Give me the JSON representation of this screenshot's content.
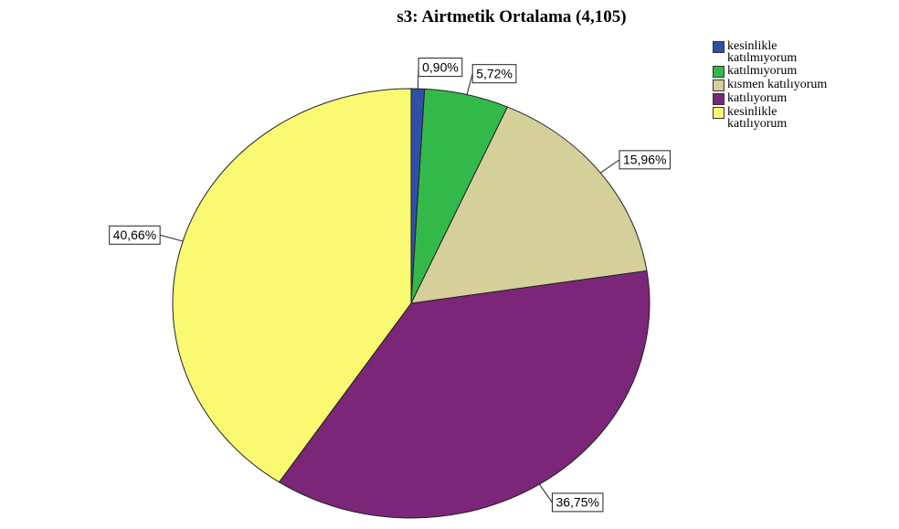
{
  "chart_data": {
    "type": "pie",
    "title": "s3: Airtmetik Ortalama (4,105)",
    "categories": [
      "kesinlikle katılmıyorum",
      "katılmıyorum",
      "kısmen katılıyorum",
      "katılıyorum",
      "kesinlikle katılıyorum"
    ],
    "values": [
      0.9,
      5.72,
      15.96,
      36.75,
      40.66
    ],
    "value_labels": [
      "0,90%",
      "5,72%",
      "15,96%",
      "36,75%",
      "40,66%"
    ],
    "colors": [
      "#3050a8",
      "#33b94a",
      "#d5cf9a",
      "#7b2678",
      "#fafa72"
    ],
    "legend": "top-right"
  }
}
